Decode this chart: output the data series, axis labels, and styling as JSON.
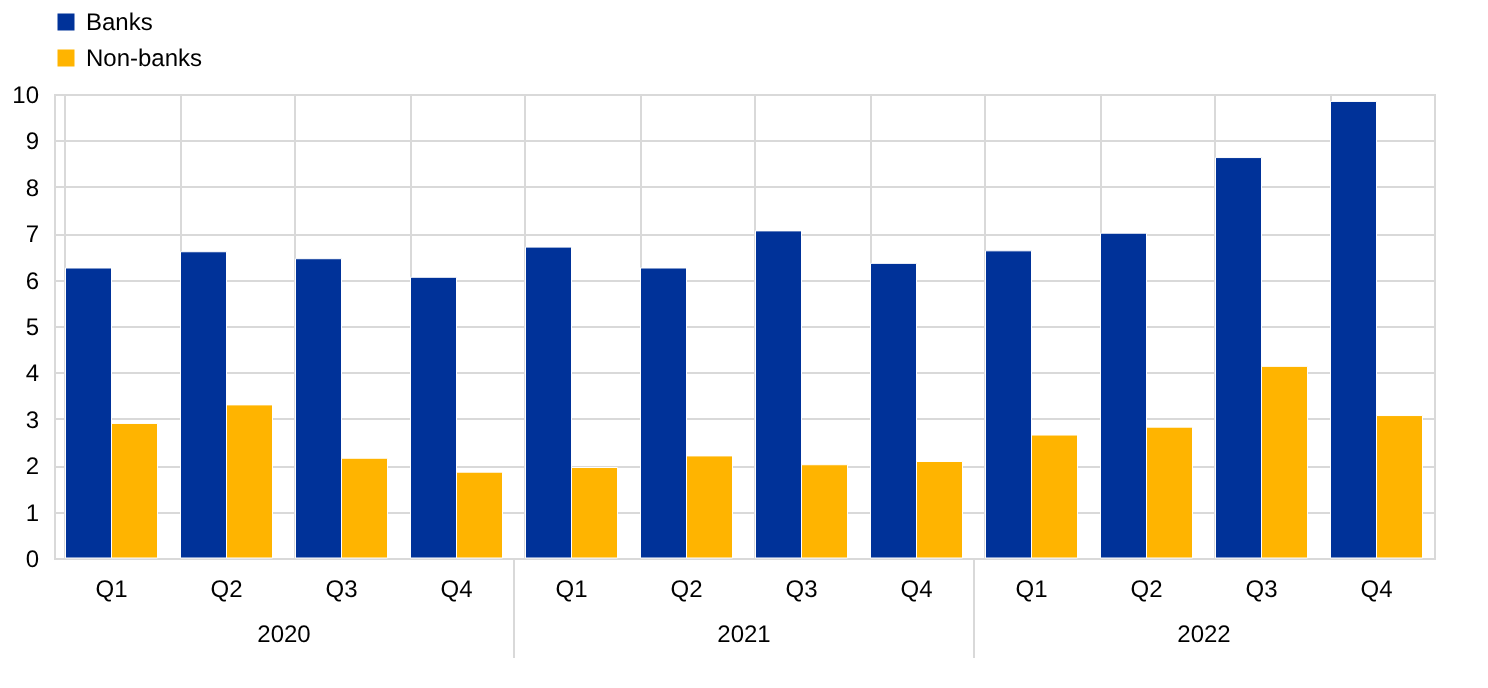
{
  "chart_data": {
    "type": "bar",
    "categories": [
      "Q1",
      "Q2",
      "Q3",
      "Q4",
      "Q1",
      "Q2",
      "Q3",
      "Q4",
      "Q1",
      "Q2",
      "Q3",
      "Q4"
    ],
    "series": [
      {
        "name": "Banks",
        "color": "#003299",
        "values": [
          6.25,
          6.6,
          6.45,
          6.05,
          6.7,
          6.25,
          7.05,
          6.35,
          6.62,
          7.0,
          8.63,
          9.84
        ]
      },
      {
        "name": "Non-banks",
        "color": "#ffb400",
        "values": [
          2.9,
          3.3,
          2.15,
          1.85,
          1.95,
          2.2,
          2.01,
          2.08,
          2.65,
          2.82,
          4.13,
          3.07
        ]
      }
    ],
    "annotations": [
      "2020",
      "2021",
      "2022"
    ],
    "ylim": [
      0,
      10
    ],
    "yticks": [
      0,
      1,
      2,
      3,
      4,
      5,
      6,
      7,
      8,
      9,
      10
    ],
    "grid": true,
    "legend": "top left"
  }
}
